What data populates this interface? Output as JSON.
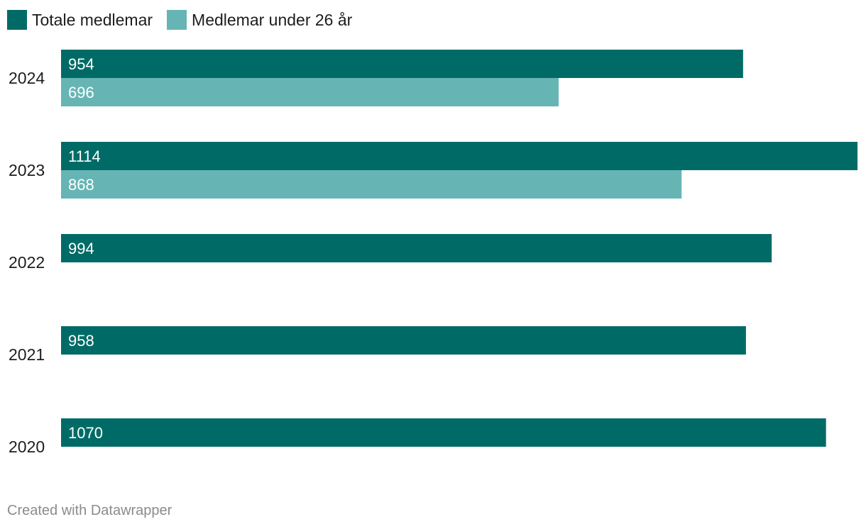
{
  "chart_data": {
    "type": "bar",
    "orientation": "horizontal",
    "categories": [
      "2024",
      "2023",
      "2022",
      "2021",
      "2020"
    ],
    "series": [
      {
        "name": "Totale medlemar",
        "color": "#006b66",
        "values": [
          954,
          1114,
          994,
          958,
          1070
        ]
      },
      {
        "name": "Medlemar under 26 år",
        "color": "#66b5b4",
        "values": [
          696,
          868,
          null,
          null,
          null
        ]
      }
    ],
    "xlim": [
      0,
      1114
    ],
    "grid": false,
    "legend": "top-left",
    "data_labels": "inside-start"
  },
  "footer": {
    "credit": "Created with Datawrapper"
  }
}
